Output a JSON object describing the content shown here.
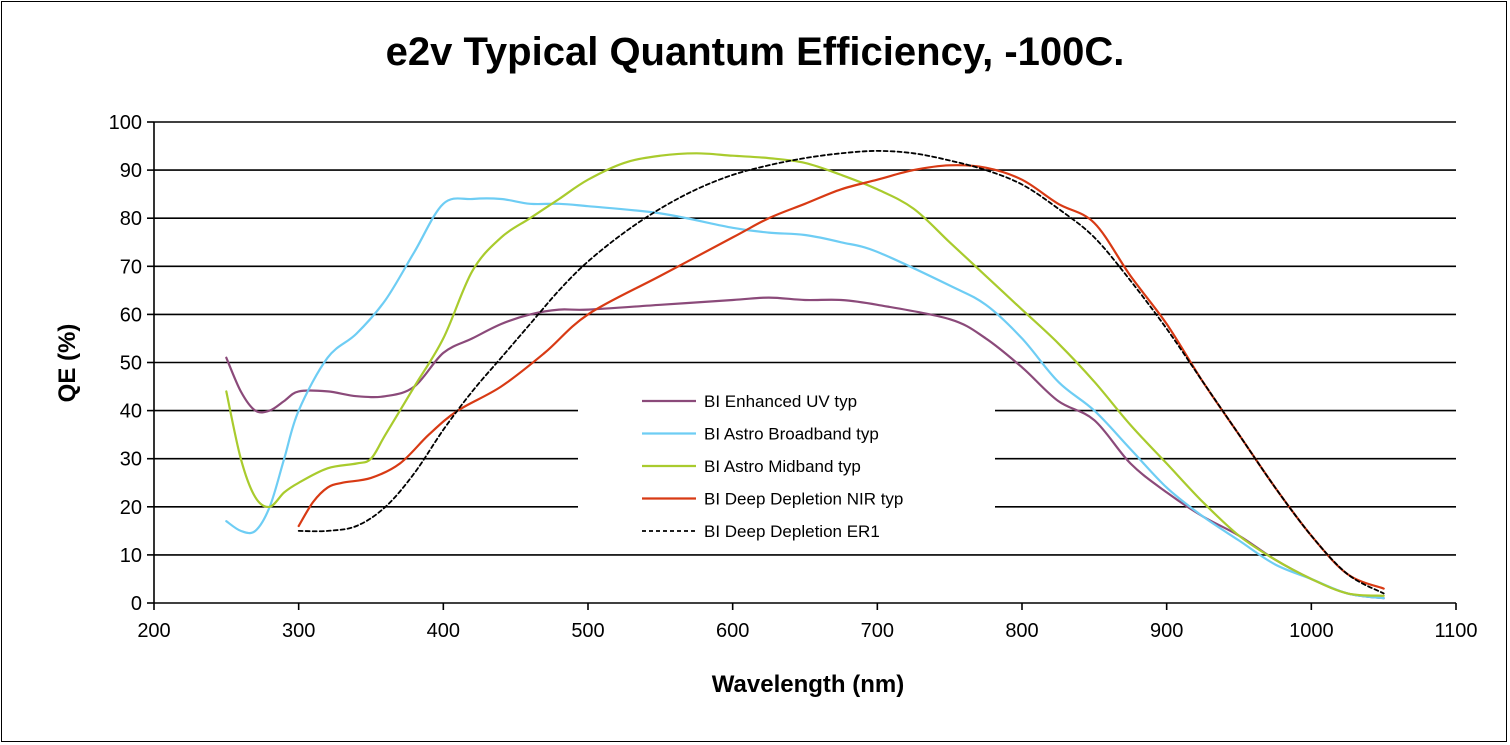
{
  "chart_data": {
    "type": "line",
    "title": "e2v Typical Quantum Efficiency, -100C.",
    "xlabel": "Wavelength (nm)",
    "ylabel": "QE (%)",
    "xlim": [
      200,
      1100
    ],
    "ylim": [
      0,
      100
    ],
    "xticks": [
      "200",
      "300",
      "400",
      "500",
      "600",
      "700",
      "800",
      "900",
      "1000",
      "1100"
    ],
    "yticks": [
      "0",
      "10",
      "20",
      "30",
      "40",
      "50",
      "60",
      "70",
      "80",
      "90",
      "100"
    ],
    "grid": "horizontal",
    "legend_position": "center",
    "series": [
      {
        "name": "BI Enhanced UV typ",
        "color": "#8b4a7a",
        "dash": "solid",
        "x": [
          250,
          260,
          270,
          280,
          290,
          300,
          320,
          340,
          360,
          380,
          400,
          420,
          440,
          460,
          480,
          500,
          550,
          600,
          625,
          650,
          675,
          700,
          750,
          775,
          800,
          825,
          850,
          875,
          900,
          925,
          950,
          975,
          1000,
          1025,
          1050
        ],
        "y": [
          51,
          44,
          40,
          40,
          42,
          44,
          44,
          43,
          43,
          45,
          52,
          55,
          58,
          60,
          61,
          61,
          62,
          63,
          63.5,
          63,
          63,
          62,
          59,
          55,
          49,
          42,
          38,
          29,
          23,
          18,
          14,
          9,
          5,
          2,
          1
        ]
      },
      {
        "name": "BI Astro Broadband typ",
        "color": "#6ecdf4",
        "dash": "solid",
        "x": [
          250,
          260,
          270,
          280,
          290,
          300,
          320,
          340,
          360,
          380,
          400,
          420,
          440,
          460,
          480,
          500,
          550,
          600,
          625,
          650,
          675,
          700,
          750,
          775,
          800,
          825,
          850,
          875,
          900,
          925,
          950,
          975,
          1000,
          1025,
          1050
        ],
        "y": [
          17,
          15,
          15,
          20,
          30,
          40,
          51,
          56,
          63,
          73,
          83,
          84,
          84,
          83,
          83,
          82.5,
          81,
          78,
          77,
          76.5,
          75,
          73,
          66,
          62,
          55,
          46,
          40,
          32,
          24,
          18,
          13,
          8,
          5,
          2,
          1
        ]
      },
      {
        "name": "BI Astro Midband typ",
        "color": "#a9cb2d",
        "dash": "solid",
        "x": [
          250,
          260,
          270,
          280,
          290,
          300,
          320,
          340,
          350,
          360,
          380,
          400,
          420,
          440,
          460,
          480,
          500,
          525,
          550,
          575,
          600,
          625,
          650,
          675,
          700,
          725,
          750,
          775,
          800,
          825,
          850,
          875,
          900,
          925,
          950,
          975,
          1000,
          1025,
          1050
        ],
        "y": [
          44,
          30,
          22,
          20,
          23,
          25,
          28,
          29,
          30,
          35,
          45,
          55,
          69,
          76,
          80,
          84,
          88,
          91.5,
          93,
          93.5,
          93,
          92.5,
          91.5,
          89,
          86,
          82,
          75,
          68,
          61,
          54,
          46,
          37,
          29,
          21,
          14,
          9,
          5,
          2,
          1.5
        ]
      },
      {
        "name": "BI Deep Depletion NIR typ",
        "color": "#d83a14",
        "dash": "solid",
        "x": [
          300,
          310,
          320,
          330,
          350,
          370,
          390,
          410,
          440,
          470,
          500,
          550,
          600,
          625,
          650,
          675,
          700,
          725,
          750,
          775,
          800,
          825,
          850,
          875,
          900,
          925,
          950,
          975,
          1000,
          1025,
          1050
        ],
        "y": [
          16,
          21,
          24,
          25,
          26,
          29,
          35,
          40,
          45,
          52,
          60,
          68,
          76,
          80,
          83,
          86,
          88,
          90,
          91,
          90.5,
          88,
          83,
          79,
          68,
          58,
          46,
          35,
          24,
          14,
          6,
          3
        ]
      },
      {
        "name": "BI Deep Depletion ER1",
        "color": "#000000",
        "dash": "dashed",
        "x": [
          300,
          320,
          340,
          360,
          380,
          400,
          420,
          440,
          460,
          480,
          500,
          525,
          550,
          575,
          600,
          625,
          650,
          675,
          700,
          725,
          750,
          775,
          800,
          825,
          850,
          875,
          900,
          925,
          950,
          975,
          1000,
          1025,
          1050
        ],
        "y": [
          15,
          15,
          16,
          20,
          27,
          36,
          44,
          51,
          58,
          65,
          71,
          77,
          82,
          86,
          89,
          91,
          92.5,
          93.5,
          94,
          93.5,
          92,
          90,
          87,
          82,
          76,
          67,
          57,
          46,
          35,
          24,
          14,
          6,
          2
        ]
      }
    ]
  }
}
